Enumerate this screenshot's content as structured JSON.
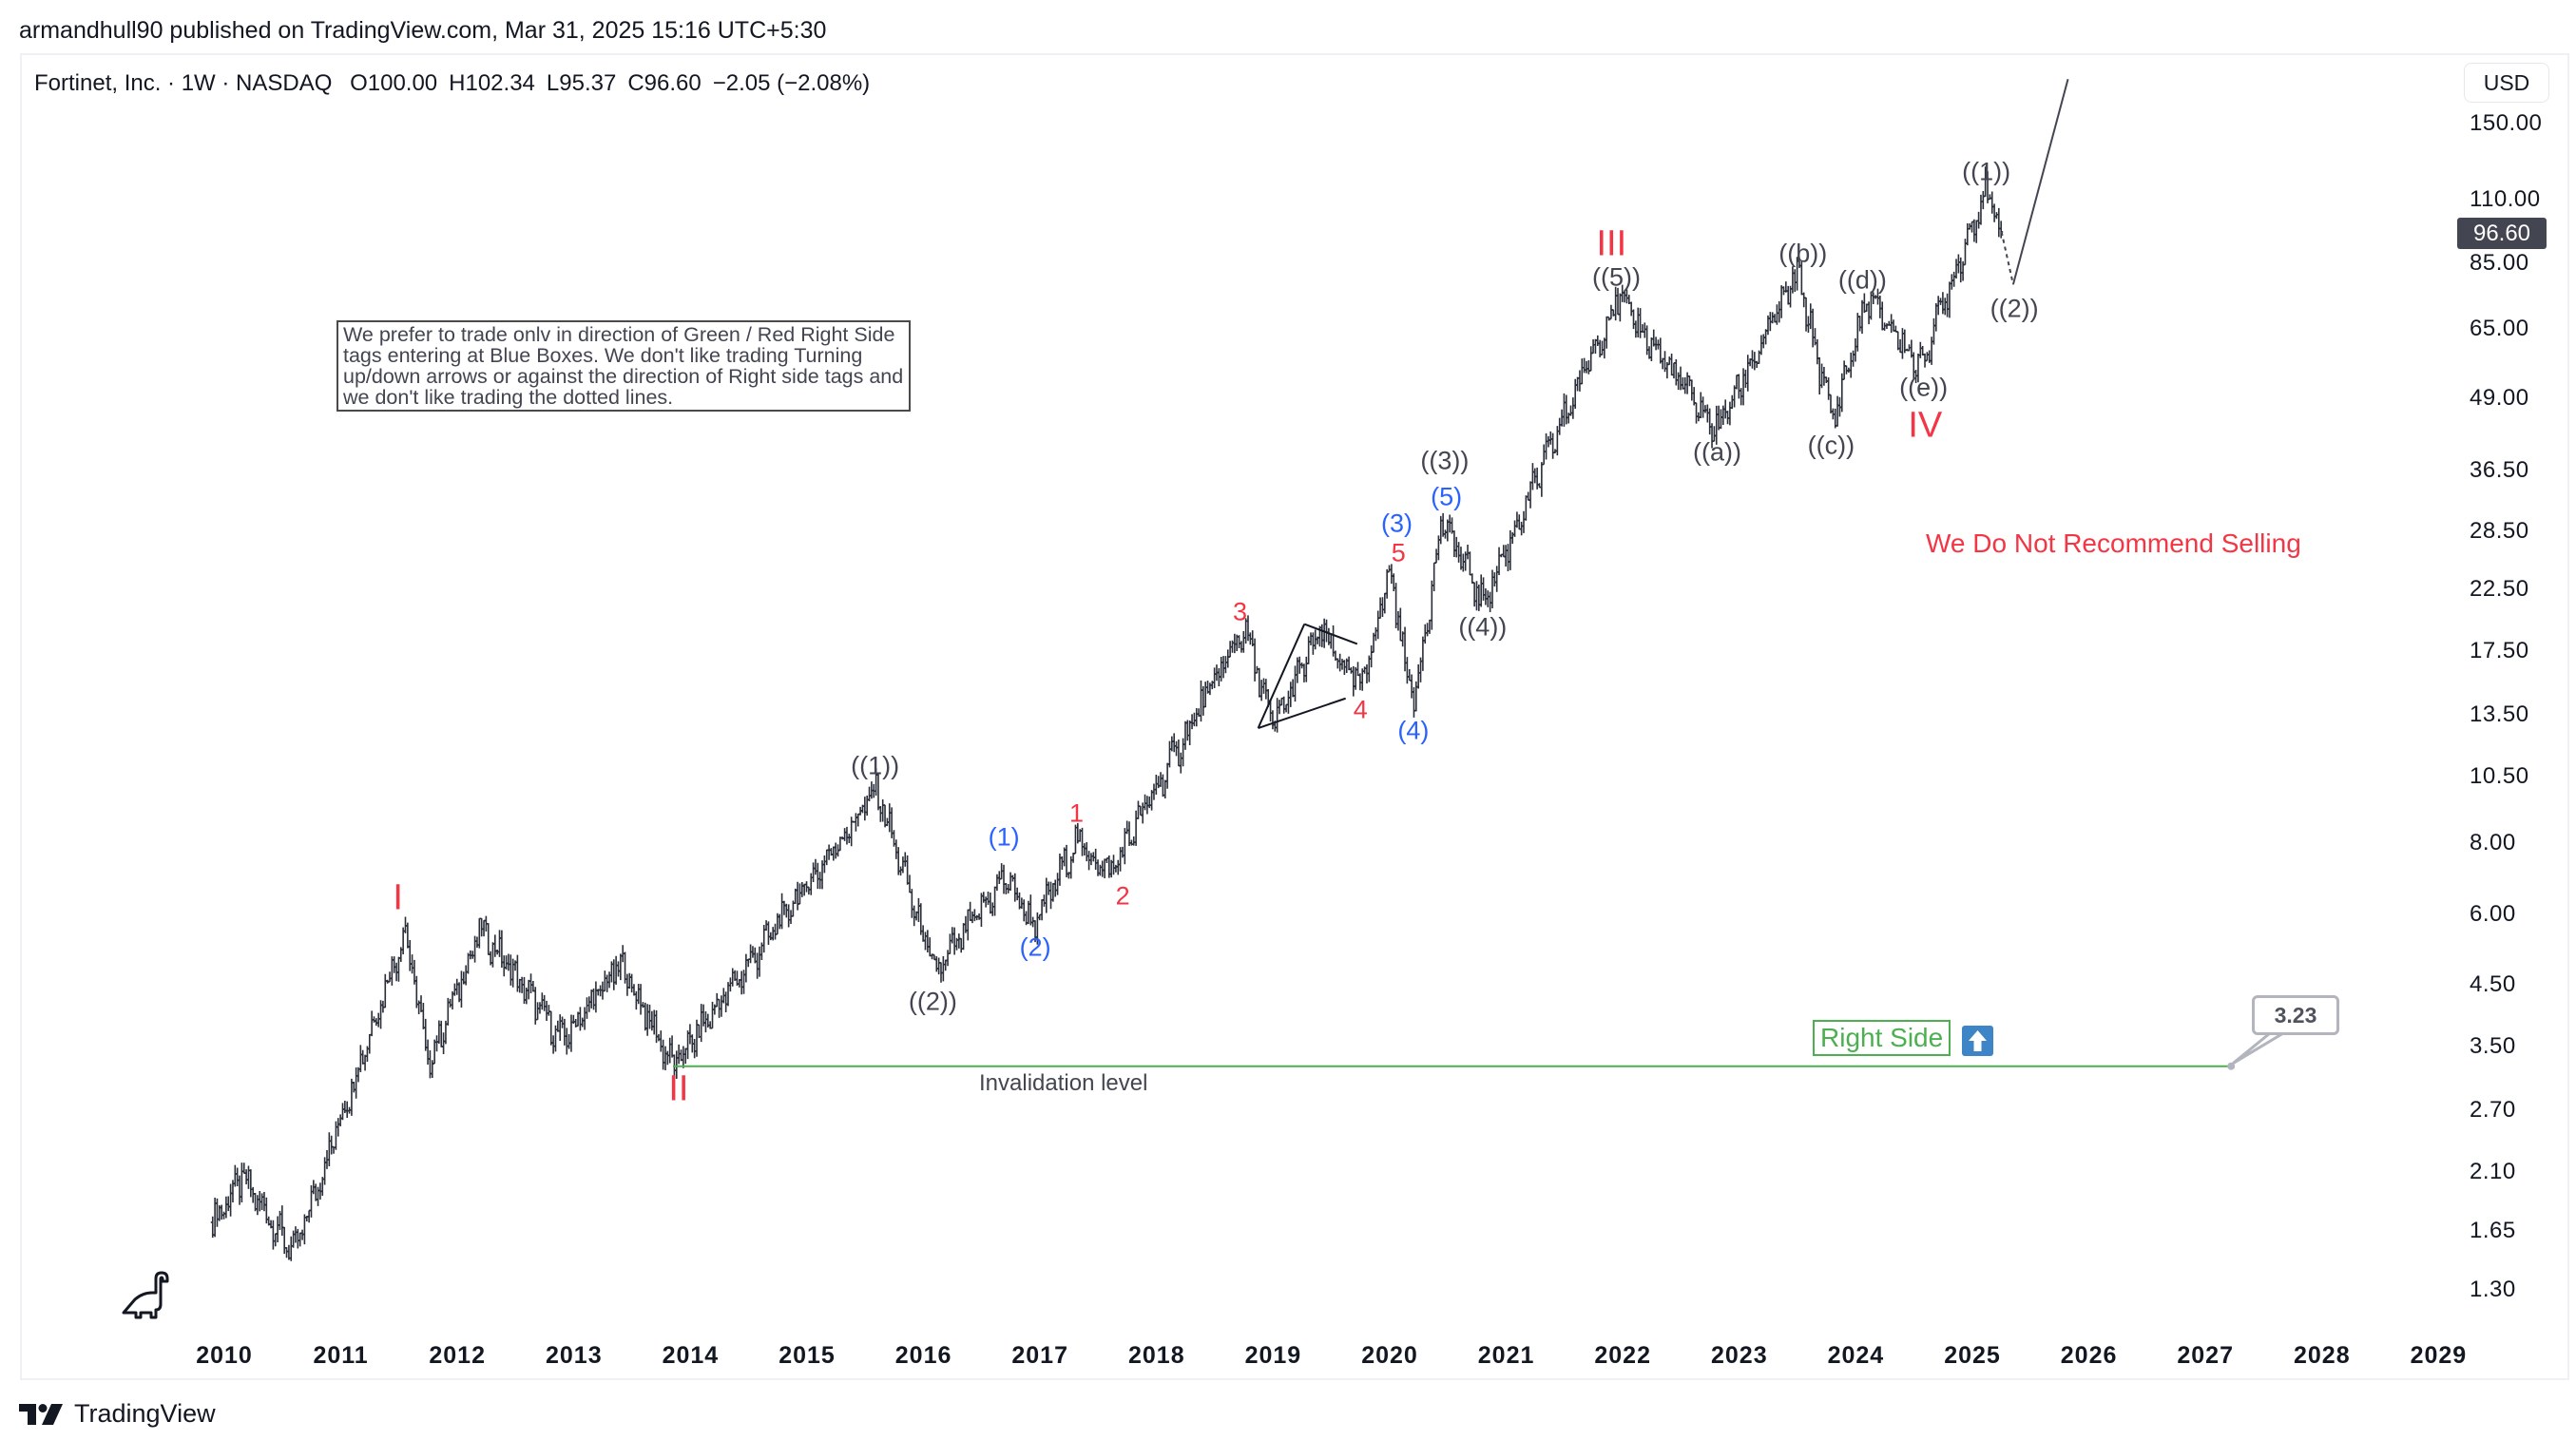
{
  "header": {
    "published": "armandhull90 published on TradingView.com, Mar 31, 2025 15:16 UTC+5:30"
  },
  "legend": {
    "symbol": "Fortinet, Inc. · 1W · NASDAQ",
    "open": "O100.00",
    "high": "H102.34",
    "low": "L95.37",
    "close": "C96.60",
    "change": "−2.05 (−2.08%)"
  },
  "price_axis": {
    "currency": "USD",
    "last_price": "96.60",
    "ticks": [
      "150.00",
      "110.00",
      "85.00",
      "65.00",
      "49.00",
      "36.50",
      "28.50",
      "22.50",
      "17.50",
      "13.50",
      "10.50",
      "8.00",
      "6.00",
      "4.50",
      "3.50",
      "2.70",
      "2.10",
      "1.65",
      "1.30"
    ]
  },
  "time_axis": {
    "ticks": [
      "2010",
      "2011",
      "2012",
      "2013",
      "2014",
      "2015",
      "2016",
      "2017",
      "2018",
      "2019",
      "2020",
      "2021",
      "2022",
      "2023",
      "2024",
      "2025",
      "2026",
      "2027",
      "2028",
      "2029"
    ]
  },
  "annotations": {
    "note": "We prefer to trade onlv in direction of Green / Red Right Side tags entering at Blue Boxes. We don't like trading Turning up/down arrows or against the direction of Right side tags and we don't like trading the dotted lines.",
    "recommendation": "We Do Not Recommend Selling",
    "invalidation_label": "Invalidation level",
    "right_side_tag": "Right Side",
    "invalidation_value": "3.23",
    "wave_labels": [
      "I",
      "II",
      "III",
      "IV",
      "((1))",
      "((2))",
      "(1)",
      "(2)",
      "1",
      "2",
      "3",
      "4",
      "5",
      "(3)",
      "(4)",
      "(5)",
      "((3))",
      "((4))",
      "((5))",
      "((a))",
      "((b))",
      "((c))",
      "((d))",
      "((e))",
      "((1))",
      "((2))"
    ]
  },
  "colors": {
    "bars": "#2a2e39",
    "wave_red": "#f23645",
    "wave_blue": "#2962ff",
    "wave_gray": "#434651",
    "invalidation_line": "#4caf50",
    "right_side_arrow": "#3d85c6"
  },
  "icons": {
    "up_arrow": "arrow-up-icon",
    "dino": "dinosaur-icon",
    "logo": "tradingview-logo-icon"
  },
  "brand": "TradingView",
  "chart_data": {
    "type": "ohlc",
    "title": "Fortinet, Inc. · 1W · NASDAQ",
    "y_scale": "log",
    "ylim": [
      1.2,
      160
    ],
    "xlim": [
      2009.3,
      2029.3
    ],
    "grid": false,
    "last_bar": {
      "open": 100.0,
      "high": 102.34,
      "low": 95.37,
      "close": 96.6,
      "change": -2.05,
      "change_pct": -2.08
    },
    "pivots": [
      {
        "t": 2009.9,
        "price": 1.71
      },
      {
        "t": 2010.15,
        "price": 2.05
      },
      {
        "t": 2010.6,
        "price": 1.51
      },
      {
        "t": 2011.55,
        "price": 5.64
      },
      {
        "t": 2011.75,
        "price": 3.25
      },
      {
        "t": 2012.2,
        "price": 5.65
      },
      {
        "t": 2012.9,
        "price": 3.59
      },
      {
        "t": 2013.4,
        "price": 4.9
      },
      {
        "t": 2013.85,
        "price": 3.23
      },
      {
        "t": 2015.6,
        "price": 9.97
      },
      {
        "t": 2016.1,
        "price": 4.7
      },
      {
        "t": 2016.7,
        "price": 7.0
      },
      {
        "t": 2016.95,
        "price": 5.7
      },
      {
        "t": 2017.3,
        "price": 8.1
      },
      {
        "t": 2017.6,
        "price": 7.1
      },
      {
        "t": 2018.75,
        "price": 19.3
      },
      {
        "t": 2019.0,
        "price": 12.9
      },
      {
        "t": 2019.4,
        "price": 19.0
      },
      {
        "t": 2019.75,
        "price": 15.0
      },
      {
        "t": 2020.0,
        "price": 24.4
      },
      {
        "t": 2020.2,
        "price": 14.0
      },
      {
        "t": 2020.45,
        "price": 29.9
      },
      {
        "t": 2020.8,
        "price": 21.4
      },
      {
        "t": 2021.95,
        "price": 74.0
      },
      {
        "t": 2022.8,
        "price": 43.0
      },
      {
        "t": 2023.5,
        "price": 81.7
      },
      {
        "t": 2023.8,
        "price": 44.8
      },
      {
        "t": 2024.1,
        "price": 74.0
      },
      {
        "t": 2024.55,
        "price": 55.8
      },
      {
        "t": 2025.1,
        "price": 114.0
      },
      {
        "t": 2025.25,
        "price": 96.6
      }
    ],
    "projection": [
      {
        "t": 2025.25,
        "price": 96.6,
        "style": "dashed"
      },
      {
        "t": 2025.35,
        "price": 78.0,
        "style": "solid"
      },
      {
        "t": 2025.82,
        "price": 180.0
      }
    ],
    "invalidation": {
      "price": 3.23,
      "from": 2013.85,
      "to": 2027.22
    }
  }
}
